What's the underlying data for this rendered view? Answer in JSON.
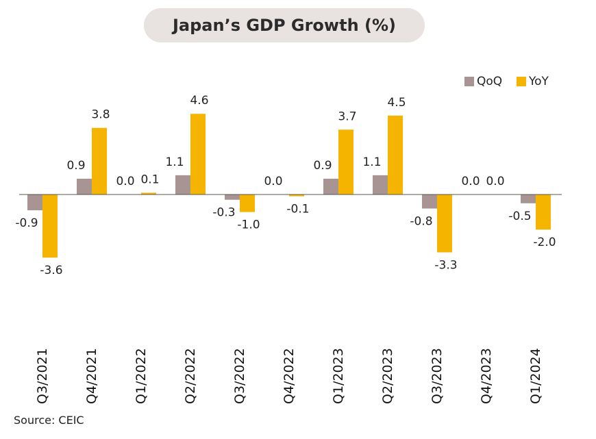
{
  "chart_data": {
    "type": "bar",
    "title": "Japan’s GDP Growth (%)",
    "categories": [
      "Q3/2021",
      "Q4/2021",
      "Q1/2022",
      "Q2/2022",
      "Q3/2022",
      "Q4/2022",
      "Q1/2023",
      "Q2/2023",
      "Q3/2023",
      "Q4/2023",
      "Q1/2024"
    ],
    "series": [
      {
        "name": "QoQ",
        "color": "#a89593",
        "values": [
          -0.9,
          0.9,
          0.0,
          1.1,
          -0.3,
          0.0,
          0.9,
          1.1,
          -0.8,
          0.0,
          -0.5
        ]
      },
      {
        "name": "YoY",
        "color": "#f5b400",
        "values": [
          -3.6,
          3.8,
          0.1,
          4.6,
          -1.0,
          -0.1,
          3.7,
          4.5,
          -3.3,
          0.0,
          -2.0
        ]
      }
    ],
    "legend_position": "top-right",
    "grid": false
  },
  "source": "Source: CEIC"
}
